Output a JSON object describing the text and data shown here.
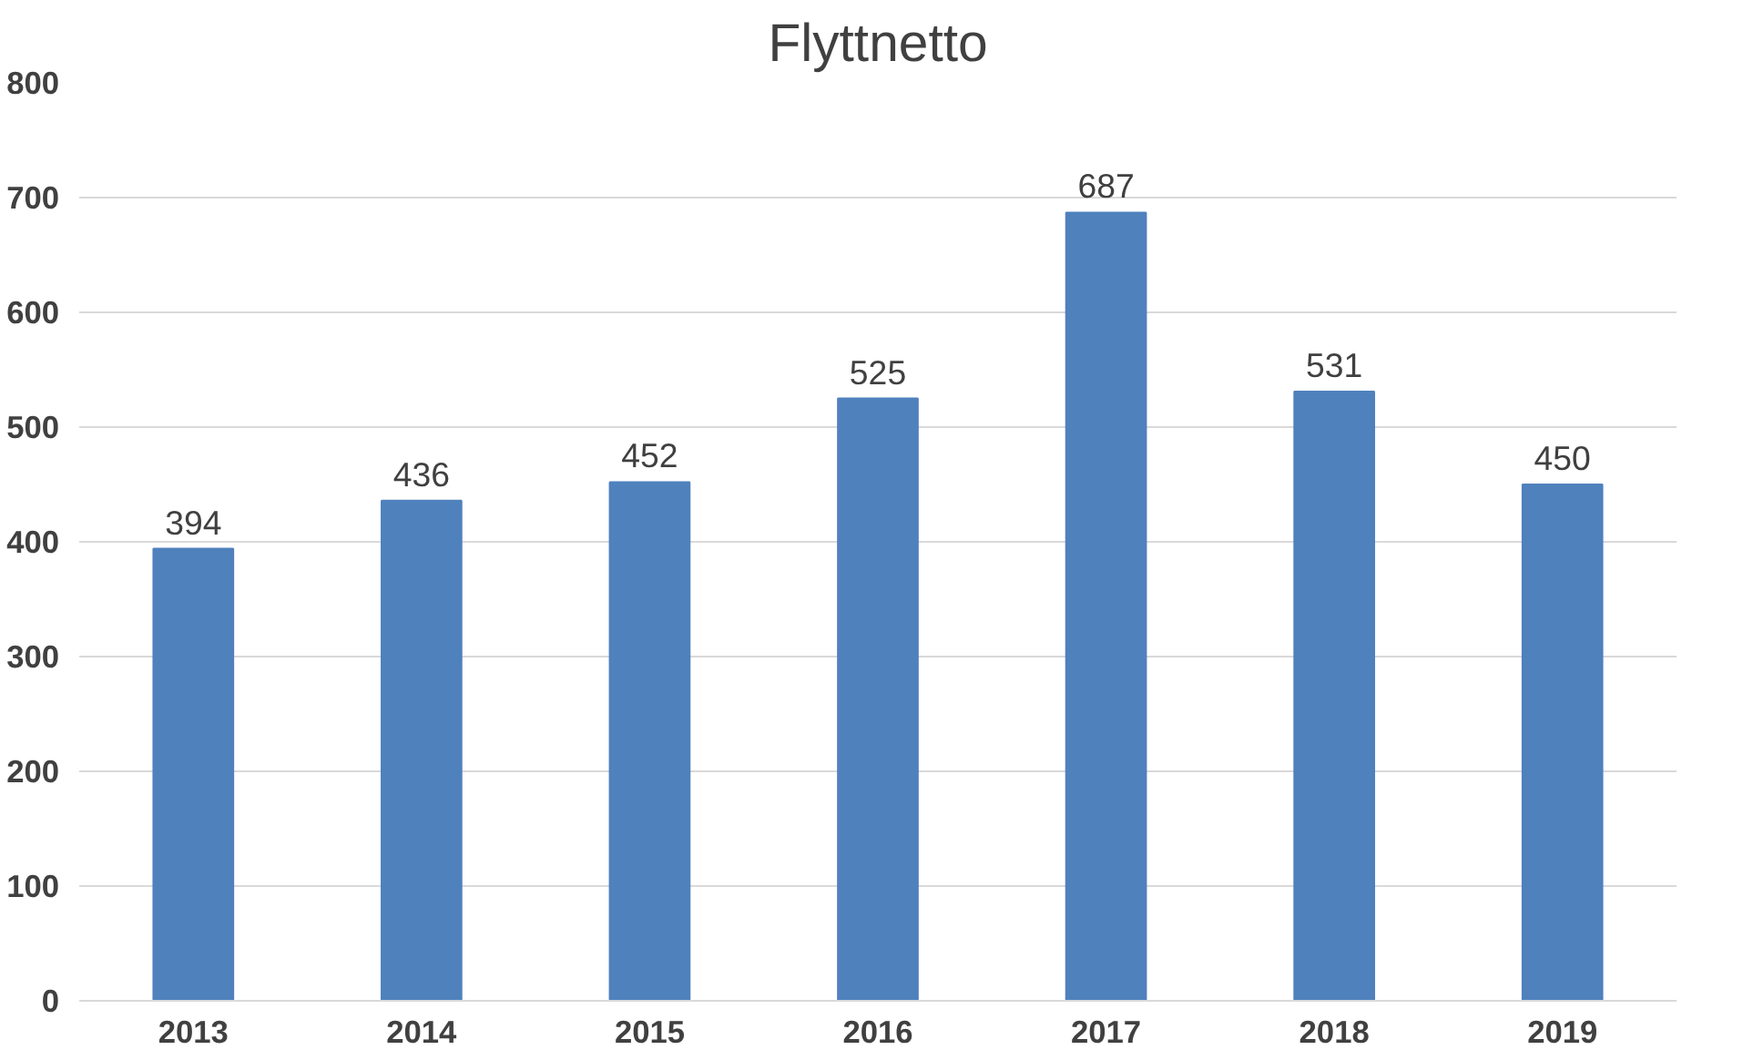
{
  "chart_data": {
    "type": "bar",
    "title": "Flyttnetto",
    "categories": [
      "2013",
      "2014",
      "2015",
      "2016",
      "2017",
      "2018",
      "2019"
    ],
    "values": [
      394,
      436,
      452,
      525,
      687,
      531,
      450
    ],
    "color": "#4f81bd",
    "ylim": [
      0,
      800
    ],
    "yticks": [
      0,
      100,
      200,
      300,
      400,
      500,
      600,
      700,
      800
    ],
    "grid": "y",
    "data_labels": true
  }
}
